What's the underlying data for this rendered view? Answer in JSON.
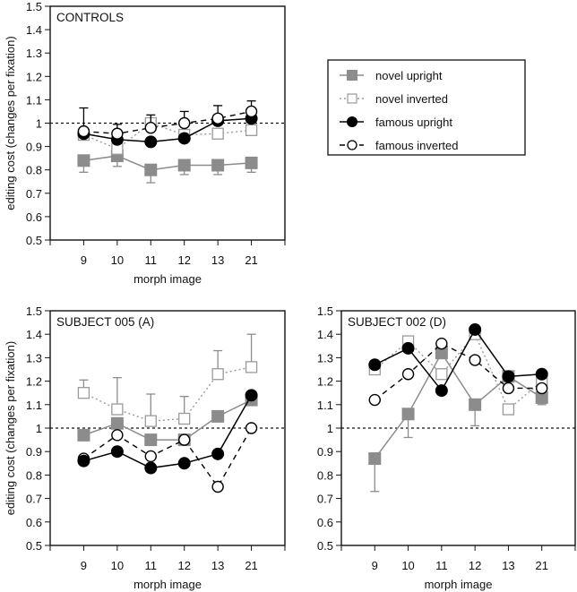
{
  "legend": {
    "entries": [
      {
        "key": "novel_upright",
        "label": "novel upright"
      },
      {
        "key": "novel_inverted",
        "label": "novel inverted"
      },
      {
        "key": "famous_upright",
        "label": "famous upright"
      },
      {
        "key": "famous_inverted",
        "label": "famous inverted"
      }
    ]
  },
  "series_styles": {
    "novel_upright": {
      "color": "#8c8c8c",
      "marker": "filled-square",
      "line": "solid"
    },
    "novel_inverted": {
      "color": "#9a9a9a",
      "marker": "open-square",
      "line": "dotted"
    },
    "famous_upright": {
      "color": "#000000",
      "marker": "filled-circle",
      "line": "solid"
    },
    "famous_inverted": {
      "color": "#000000",
      "marker": "open-circle",
      "line": "dashed"
    }
  },
  "chart_data": [
    {
      "type": "line",
      "title": "CONTROLS",
      "xlabel": "morph image",
      "ylabel": "editing cost (changes per fixation)",
      "categories": [
        "9",
        "10",
        "11",
        "12",
        "13",
        "21"
      ],
      "ylim": [
        0.5,
        1.5
      ],
      "yticks": [
        "0.5",
        "0.6",
        "0.7",
        "0.8",
        "0.9",
        "1",
        "1.1",
        "1.2",
        "1.3",
        "1.4",
        "1.5"
      ],
      "reference_line": 1.0,
      "show_ylabel": true,
      "series": [
        {
          "key": "novel_upright",
          "name": "novel upright",
          "values": [
            0.84,
            0.86,
            0.8,
            0.82,
            0.82,
            0.83
          ],
          "error_lower": [
            0.79,
            0.815,
            0.745,
            0.78,
            0.78,
            0.79
          ],
          "error_upper": [
            null,
            null,
            null,
            null,
            null,
            null
          ]
        },
        {
          "key": "novel_inverted",
          "name": "novel inverted",
          "values": [
            0.95,
            0.89,
            1.0,
            0.95,
            0.955,
            0.97
          ],
          "error_lower": [
            null,
            null,
            null,
            null,
            null,
            null
          ],
          "error_upper": [
            null,
            null,
            null,
            null,
            null,
            null
          ]
        },
        {
          "key": "famous_upright",
          "name": "famous upright",
          "values": [
            0.955,
            0.93,
            0.92,
            0.935,
            1.01,
            1.02
          ],
          "error_lower": [
            null,
            null,
            null,
            null,
            null,
            null
          ],
          "error_upper": [
            null,
            null,
            null,
            null,
            null,
            null
          ]
        },
        {
          "key": "famous_inverted",
          "name": "famous inverted",
          "values": [
            0.965,
            0.955,
            0.98,
            1.0,
            1.02,
            1.05
          ],
          "error_lower": [
            null,
            null,
            null,
            null,
            null,
            null
          ],
          "error_upper": [
            1.065,
            0.995,
            1.035,
            1.05,
            1.075,
            1.095
          ]
        }
      ]
    },
    {
      "type": "line",
      "title": "SUBJECT 005 (A)",
      "xlabel": "morph image",
      "ylabel": "editing cost (changes per fixation)",
      "categories": [
        "9",
        "10",
        "11",
        "12",
        "13",
        "21"
      ],
      "ylim": [
        0.5,
        1.5
      ],
      "yticks": [
        "0.5",
        "0.6",
        "0.7",
        "0.8",
        "0.9",
        "1",
        "1.1",
        "1.2",
        "1.3",
        "1.4",
        "1.5"
      ],
      "reference_line": 1.0,
      "show_ylabel": true,
      "series": [
        {
          "key": "novel_inverted",
          "name": "novel inverted",
          "values": [
            1.15,
            1.08,
            1.03,
            1.04,
            1.23,
            1.26
          ],
          "error_lower": [
            null,
            null,
            null,
            null,
            null,
            null
          ],
          "error_upper": [
            1.205,
            1.215,
            1.145,
            1.135,
            1.33,
            1.4
          ]
        },
        {
          "key": "novel_upright",
          "name": "novel upright",
          "values": [
            0.97,
            1.02,
            0.95,
            0.95,
            1.05,
            1.12
          ],
          "error_lower": [
            null,
            null,
            null,
            null,
            null,
            null
          ],
          "error_upper": [
            null,
            null,
            null,
            null,
            null,
            null
          ]
        },
        {
          "key": "famous_inverted",
          "name": "famous inverted",
          "values": [
            0.87,
            0.97,
            0.88,
            0.95,
            0.75,
            1.0
          ],
          "error_lower": [
            null,
            null,
            null,
            null,
            null,
            null
          ],
          "error_upper": [
            null,
            null,
            null,
            null,
            null,
            null
          ]
        },
        {
          "key": "famous_upright",
          "name": "famous upright",
          "values": [
            0.86,
            0.9,
            0.83,
            0.85,
            0.89,
            1.14
          ],
          "error_lower": [
            null,
            null,
            null,
            null,
            null,
            null
          ],
          "error_upper": [
            null,
            null,
            null,
            null,
            null,
            null
          ]
        }
      ]
    },
    {
      "type": "line",
      "title": "SUBJECT 002 (D)",
      "xlabel": "morph image",
      "ylabel": "",
      "categories": [
        "9",
        "10",
        "11",
        "12",
        "13",
        "21"
      ],
      "ylim": [
        0.5,
        1.5
      ],
      "yticks": [
        "0.5",
        "0.6",
        "0.7",
        "0.8",
        "0.9",
        "1",
        "1.1",
        "1.2",
        "1.3",
        "1.4",
        "1.5"
      ],
      "reference_line": 1.0,
      "show_ylabel": false,
      "series": [
        {
          "key": "novel_upright",
          "name": "novel upright",
          "values": [
            0.87,
            1.06,
            1.32,
            1.1,
            1.22,
            1.13
          ],
          "error_lower": [
            0.73,
            0.96,
            null,
            1.01,
            null,
            1.1
          ],
          "error_upper": [
            null,
            null,
            null,
            null,
            null,
            null
          ]
        },
        {
          "key": "novel_inverted",
          "name": "novel inverted",
          "values": [
            1.25,
            1.37,
            1.23,
            1.4,
            1.08,
            1.2
          ],
          "error_lower": [
            null,
            null,
            null,
            null,
            null,
            null
          ],
          "error_upper": [
            null,
            null,
            null,
            null,
            null,
            null
          ]
        },
        {
          "key": "famous_inverted",
          "name": "famous inverted",
          "values": [
            1.12,
            1.23,
            1.36,
            1.29,
            1.17,
            1.17
          ],
          "error_lower": [
            null,
            null,
            null,
            null,
            null,
            null
          ],
          "error_upper": [
            null,
            null,
            null,
            null,
            null,
            null
          ]
        },
        {
          "key": "famous_upright",
          "name": "famous upright",
          "values": [
            1.27,
            1.34,
            1.16,
            1.42,
            1.22,
            1.23
          ],
          "error_lower": [
            null,
            null,
            null,
            null,
            null,
            null
          ],
          "error_upper": [
            null,
            null,
            null,
            null,
            null,
            null
          ]
        }
      ]
    }
  ]
}
